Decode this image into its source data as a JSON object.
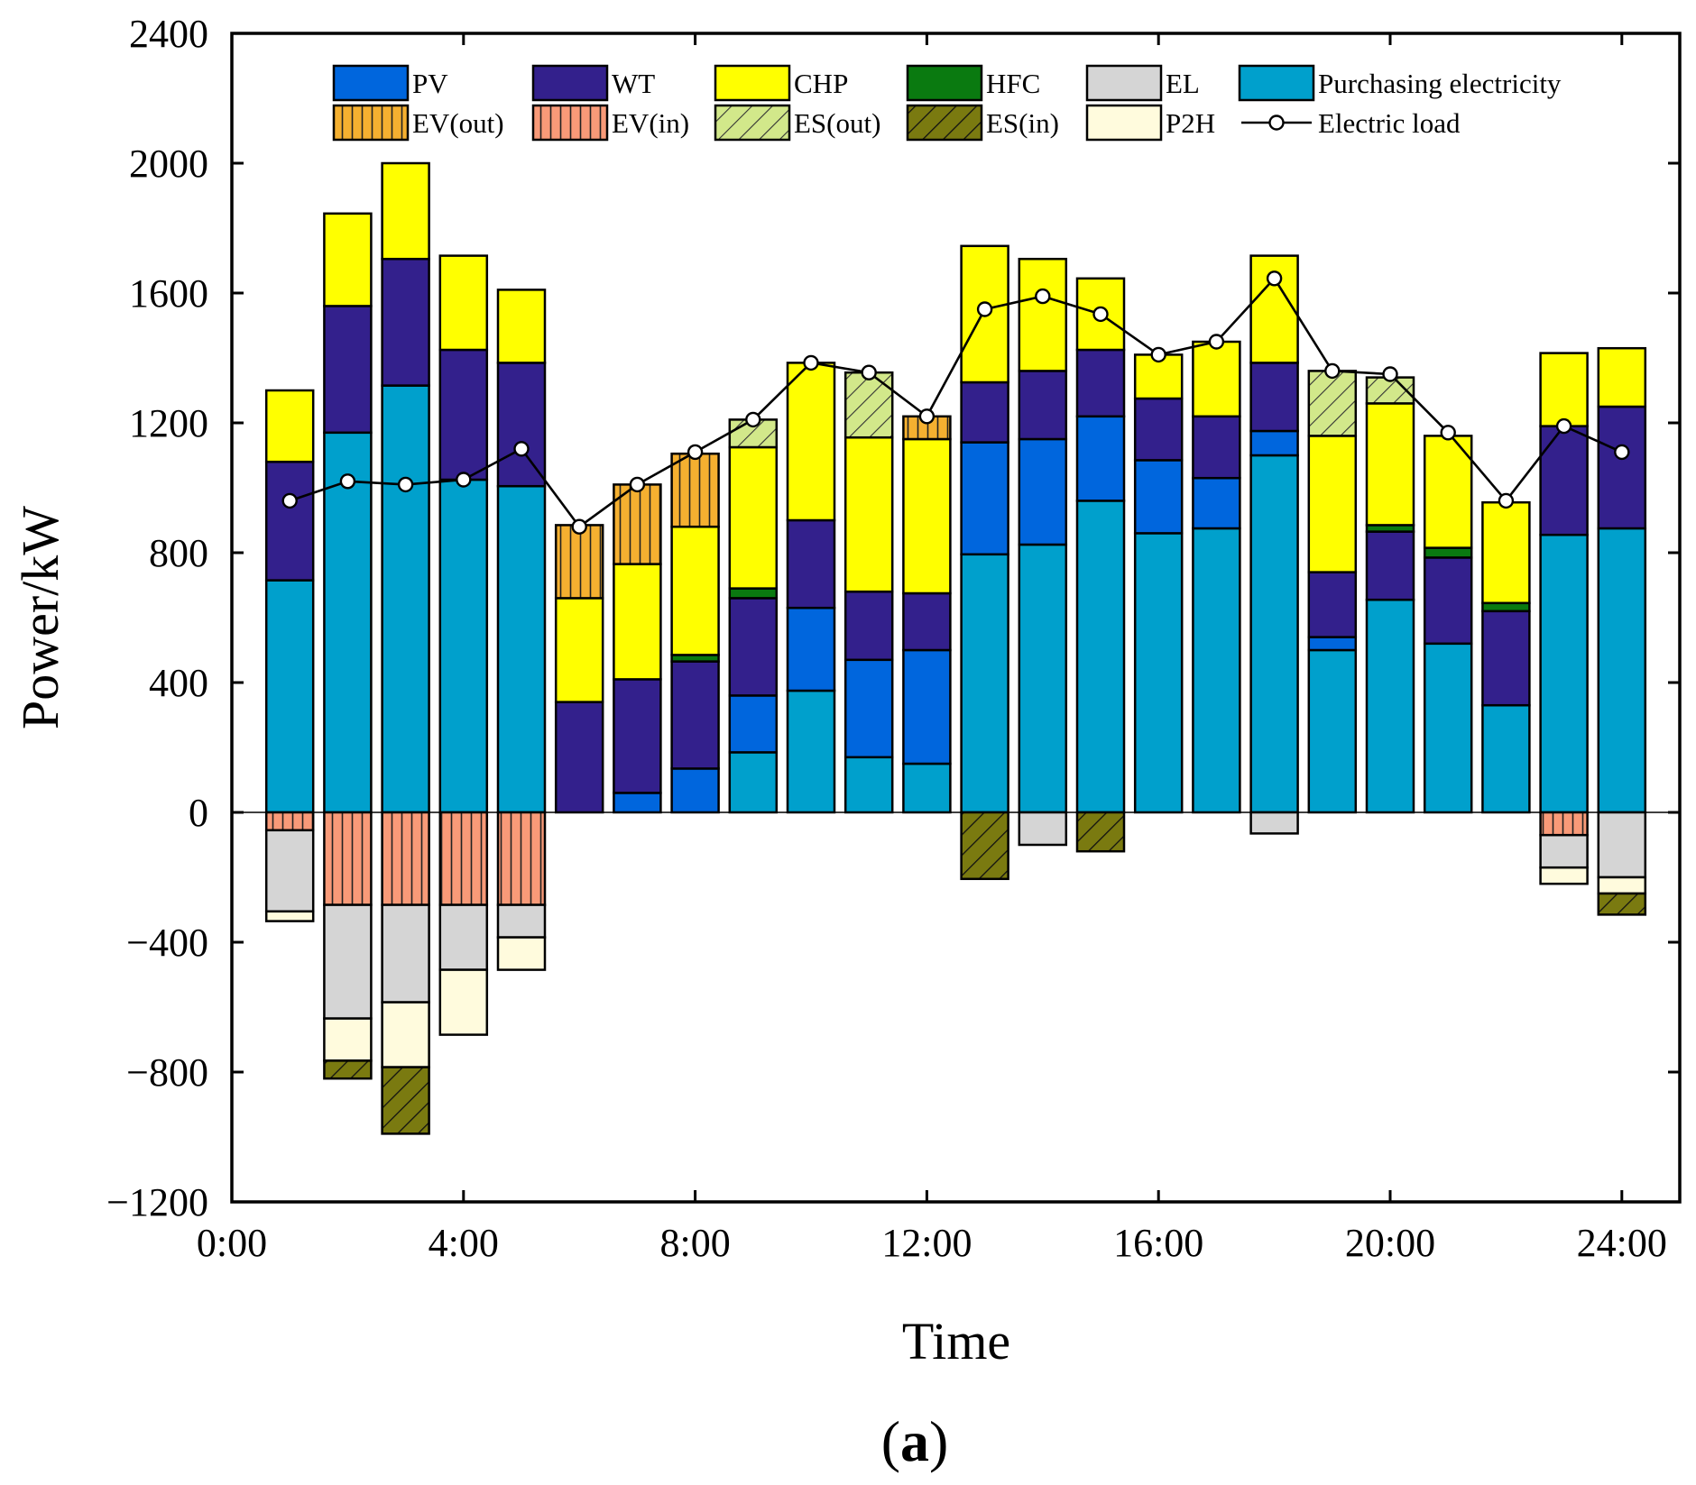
{
  "chart_data": {
    "type": "bar",
    "subtype": "stacked-bar-with-line",
    "panel_label": "(a)",
    "panel_label_parts": {
      "open": "(",
      "letter": "a",
      "close": ")"
    },
    "xlabel": "Time",
    "ylabel": "Power/kW",
    "xlim": [
      0,
      25
    ],
    "ylim": [
      -1200,
      2400
    ],
    "x_ticks": [
      0,
      4,
      8,
      12,
      16,
      20,
      24
    ],
    "x_tick_labels": [
      "0:00",
      "4:00",
      "8:00",
      "12:00",
      "16:00",
      "20:00",
      "24:00"
    ],
    "y_ticks": [
      -1200,
      -800,
      -400,
      0,
      400,
      800,
      1200,
      1600,
      2000,
      2400
    ],
    "y_tick_labels": [
      "−1200",
      "−800",
      "−400",
      "0",
      "400",
      "800",
      "1200",
      "1600",
      "2000",
      "2400"
    ],
    "legend_position": "top",
    "hours": [
      1,
      2,
      3,
      4,
      5,
      6,
      7,
      8,
      9,
      10,
      11,
      12,
      13,
      14,
      15,
      16,
      17,
      18,
      19,
      20,
      21,
      22,
      23,
      24
    ],
    "positive_series": [
      {
        "name": "Purchasing electricity",
        "key": "buy",
        "color": "#00A0CC",
        "pattern": "none",
        "values": [
          715,
          1170,
          1315,
          1025,
          1005,
          0,
          0,
          0,
          185,
          375,
          170,
          150,
          795,
          825,
          960,
          860,
          875,
          1100,
          500,
          655,
          520,
          330,
          855,
          875
        ]
      },
      {
        "name": "PV",
        "key": "pv",
        "color": "#0066DD",
        "pattern": "none",
        "values": [
          0,
          0,
          0,
          0,
          0,
          0,
          60,
          135,
          175,
          255,
          300,
          350,
          345,
          325,
          260,
          225,
          155,
          75,
          40,
          0,
          0,
          0,
          0,
          0
        ]
      },
      {
        "name": "WT",
        "key": "wt",
        "color": "#33208C",
        "pattern": "none",
        "values": [
          365,
          390,
          390,
          400,
          380,
          340,
          350,
          330,
          300,
          270,
          210,
          175,
          185,
          210,
          205,
          190,
          190,
          210,
          200,
          210,
          265,
          290,
          335,
          375
        ]
      },
      {
        "name": "HFC",
        "key": "hfc",
        "color": "#0A7A10",
        "pattern": "none",
        "values": [
          0,
          0,
          0,
          0,
          0,
          0,
          0,
          20,
          30,
          0,
          0,
          0,
          0,
          0,
          0,
          0,
          0,
          0,
          0,
          20,
          30,
          25,
          0,
          0
        ]
      },
      {
        "name": "CHP",
        "key": "chp",
        "color": "#FFFF00",
        "pattern": "none",
        "values": [
          220,
          285,
          295,
          290,
          225,
          320,
          355,
          395,
          435,
          485,
          475,
          475,
          420,
          345,
          220,
          135,
          230,
          330,
          420,
          375,
          345,
          310,
          225,
          180
        ]
      },
      {
        "name": "EV(out)",
        "key": "evout",
        "color": "#F5B030",
        "pattern": "vlines",
        "values": [
          0,
          0,
          0,
          0,
          0,
          225,
          245,
          225,
          0,
          0,
          0,
          70,
          0,
          0,
          0,
          0,
          0,
          0,
          0,
          0,
          0,
          0,
          0,
          0
        ]
      },
      {
        "name": "ES(out)",
        "key": "esout",
        "color": "#D2E88A",
        "pattern": "diag-light",
        "values": [
          0,
          0,
          0,
          0,
          0,
          0,
          0,
          0,
          85,
          0,
          200,
          0,
          0,
          0,
          0,
          0,
          0,
          0,
          200,
          80,
          0,
          0,
          0,
          0
        ]
      }
    ],
    "negative_series": [
      {
        "name": "EV(in)",
        "key": "evin",
        "color": "#F99A78",
        "pattern": "vlines",
        "values": [
          -55,
          -285,
          -285,
          -285,
          -285,
          0,
          0,
          0,
          0,
          0,
          0,
          0,
          0,
          0,
          0,
          0,
          0,
          0,
          0,
          0,
          0,
          0,
          -70,
          0
        ]
      },
      {
        "name": "EL",
        "key": "el",
        "color": "#D5D5D5",
        "pattern": "none",
        "values": [
          -250,
          -350,
          -300,
          -200,
          -100,
          0,
          0,
          0,
          0,
          0,
          0,
          0,
          0,
          -100,
          0,
          0,
          0,
          -65,
          0,
          0,
          0,
          0,
          -100,
          -200
        ]
      },
      {
        "name": "P2H",
        "key": "p2h",
        "color": "#FFFBDD",
        "pattern": "none",
        "values": [
          -30,
          -130,
          -200,
          -200,
          -100,
          0,
          0,
          0,
          0,
          0,
          0,
          0,
          0,
          0,
          0,
          0,
          0,
          0,
          0,
          0,
          0,
          0,
          -50,
          -50
        ]
      },
      {
        "name": "ES(in)",
        "key": "esin",
        "color": "#7A7A10",
        "pattern": "diag-dark",
        "values": [
          0,
          -55,
          -205,
          0,
          0,
          0,
          0,
          0,
          0,
          0,
          0,
          0,
          -205,
          0,
          -120,
          0,
          0,
          0,
          0,
          0,
          0,
          0,
          0,
          -65
        ]
      }
    ],
    "line_series": {
      "name": "Electric load",
      "key": "load",
      "color": "#000000",
      "values": [
        960,
        1020,
        1010,
        1025,
        1120,
        880,
        1010,
        1110,
        1210,
        1385,
        1355,
        1220,
        1550,
        1590,
        1535,
        1410,
        1450,
        1645,
        1360,
        1350,
        1170,
        960,
        1190,
        1110
      ]
    },
    "legend": [
      {
        "label": "PV",
        "key": "pv"
      },
      {
        "label": "WT",
        "key": "wt"
      },
      {
        "label": "CHP",
        "key": "chp"
      },
      {
        "label": "HFC",
        "key": "hfc"
      },
      {
        "label": "EL",
        "key": "el"
      },
      {
        "label": "Purchasing electricity",
        "key": "buy"
      },
      {
        "label": "EV(out)",
        "key": "evout"
      },
      {
        "label": "EV(in)",
        "key": "evin"
      },
      {
        "label": "ES(out)",
        "key": "esout"
      },
      {
        "label": "ES(in)",
        "key": "esin"
      },
      {
        "label": "P2H",
        "key": "p2h"
      },
      {
        "label": "Electric load",
        "key": "load"
      }
    ]
  }
}
